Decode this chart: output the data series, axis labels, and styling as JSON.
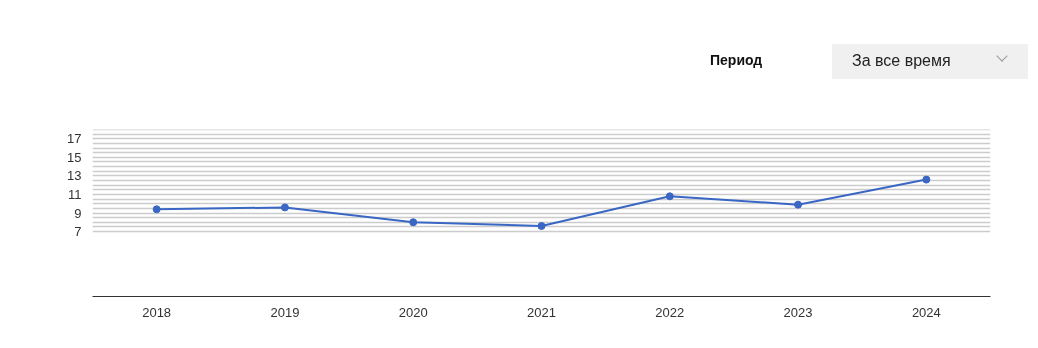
{
  "chart_data": {
    "type": "line",
    "categories": [
      "2018",
      "2019",
      "2020",
      "2021",
      "2022",
      "2023",
      "2024"
    ],
    "series": [
      {
        "color": "#3a66c4",
        "values": [
          9.4,
          9.6,
          8.0,
          7.6,
          10.8,
          9.9,
          12.6
        ]
      }
    ],
    "ylim": [
      0,
      18
    ],
    "yticks": [
      7,
      {
        "value": 7.5,
        "label": null
      },
      {
        "value": 8,
        "label": null
      },
      {
        "value": 8.5,
        "label": null
      },
      9,
      {
        "value": 9.5,
        "label": null
      },
      {
        "value": 10,
        "label": null
      },
      {
        "value": 10.5,
        "label": null
      },
      11,
      {
        "value": 11.5,
        "label": null
      },
      {
        "value": 12,
        "label": null
      },
      {
        "value": 12.5,
        "label": null
      },
      13,
      {
        "value": 13.5,
        "label": null
      },
      {
        "value": 14,
        "label": null
      },
      {
        "value": 14.5,
        "label": null
      },
      15,
      {
        "value": 15.5,
        "label": null
      },
      {
        "value": 16,
        "label": null
      },
      {
        "value": 16.5,
        "label": null
      },
      17,
      {
        "value": 17.5,
        "label": null
      },
      {
        "value": 18,
        "label": null
      }
    ],
    "grid": "y",
    "marker": "circle",
    "line_style": "solid",
    "annotations": [
      "Период",
      "За все время"
    ]
  }
}
